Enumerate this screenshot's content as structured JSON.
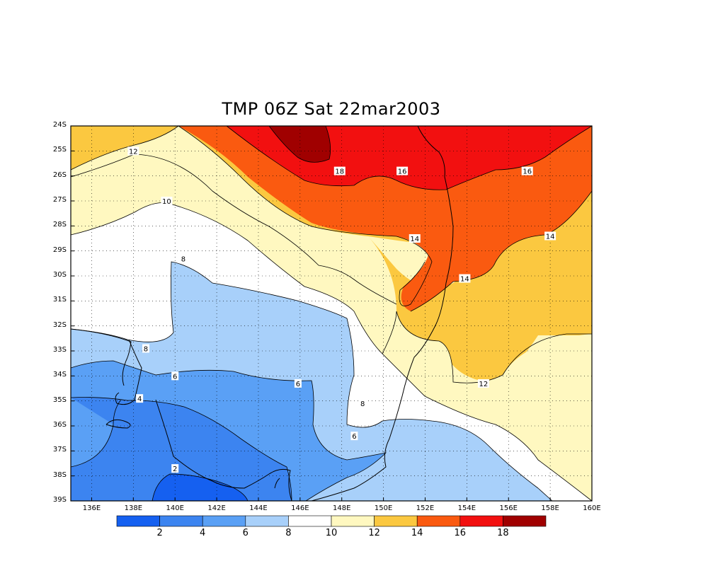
{
  "title": "TMP 06Z Sat 22mar2003",
  "y_ticks": [
    "24S",
    "25S",
    "26S",
    "27S",
    "28S",
    "29S",
    "30S",
    "31S",
    "32S",
    "33S",
    "34S",
    "35S",
    "36S",
    "37S",
    "38S",
    "39S"
  ],
  "x_ticks": [
    "136E",
    "138E",
    "140E",
    "142E",
    "144E",
    "146E",
    "148E",
    "150E",
    "152E",
    "154E",
    "156E",
    "158E",
    "160E"
  ],
  "colorbar": {
    "labels": [
      "2",
      "4",
      "6",
      "8",
      "10",
      "12",
      "14",
      "16",
      "18"
    ],
    "colors": [
      "#1560f0",
      "#3c84f0",
      "#5aa0f5",
      "#a8d0fa",
      "#ffffff",
      "#fff8c0",
      "#fbc840",
      "#fa5a10",
      "#f21010",
      "#a00000"
    ]
  },
  "contour_labels": [
    {
      "text": "12",
      "lon": 138.0,
      "lat": -25.0
    },
    {
      "text": "10",
      "lon": 139.6,
      "lat": -27.0
    },
    {
      "text": "8",
      "lon": 140.4,
      "lat": -29.3
    },
    {
      "text": "8",
      "lon": 138.6,
      "lat": -32.9
    },
    {
      "text": "6",
      "lon": 140.0,
      "lat": -34.0
    },
    {
      "text": "6",
      "lon": 145.9,
      "lat": -34.3
    },
    {
      "text": "4",
      "lon": 138.3,
      "lat": -34.9
    },
    {
      "text": "2",
      "lon": 140.0,
      "lat": -37.7
    },
    {
      "text": "18",
      "lon": 147.9,
      "lat": -25.8
    },
    {
      "text": "16",
      "lon": 150.9,
      "lat": -25.8
    },
    {
      "text": "16",
      "lon": 156.9,
      "lat": -25.8
    },
    {
      "text": "14",
      "lon": 151.5,
      "lat": -28.5
    },
    {
      "text": "14",
      "lon": 158.0,
      "lat": -28.4
    },
    {
      "text": "14",
      "lon": 153.9,
      "lat": -30.1
    },
    {
      "text": "12",
      "lon": 154.8,
      "lat": -34.3
    },
    {
      "text": "8",
      "lon": 149.0,
      "lat": -35.1
    },
    {
      "text": "6",
      "lon": 148.6,
      "lat": -36.4
    }
  ]
}
